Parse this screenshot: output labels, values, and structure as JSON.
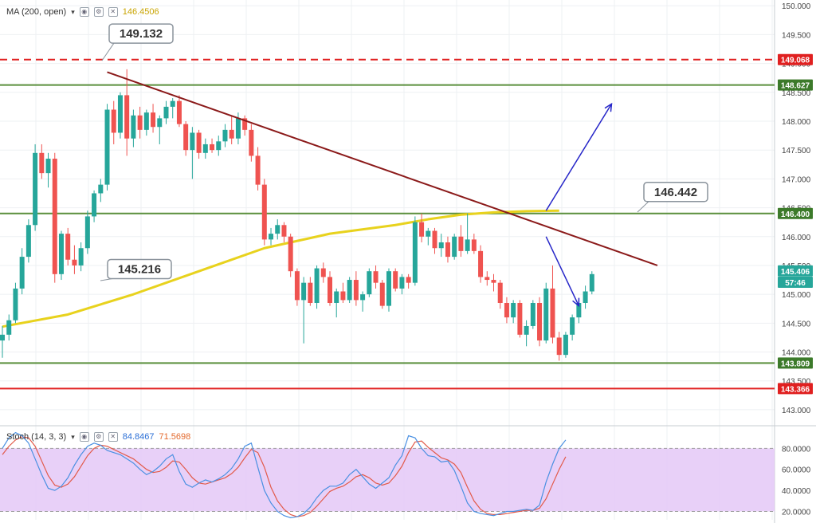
{
  "colors": {
    "bull": "#26a69a",
    "bear": "#ef5350",
    "ma": "#e8d21d",
    "trendline": "#8b1a1a",
    "support": "#5a8f3c",
    "resistance_red": "#e02020",
    "arrow": "#2626c8",
    "stoch_k": "#4a90e2",
    "stoch_d": "#e25a4a",
    "stoch_band": "#e4c8f7",
    "callout_border": "#8a939c",
    "axis_text": "#444444"
  },
  "legend_main": {
    "ma_label": "MA (200, open)",
    "ma_value": "146.4506"
  },
  "legend_stoch": {
    "label": "Stoch (14, 3, 3)",
    "k_value": "84.8467",
    "d_value": "71.5698"
  },
  "callouts": [
    {
      "text": "149.132",
      "price": 149.132
    },
    {
      "text": "146.442",
      "price": 146.442
    },
    {
      "text": "145.216",
      "price": 145.216
    }
  ],
  "price_tags": [
    {
      "text": "149.068",
      "price": 149.068,
      "color": "#e02020"
    },
    {
      "text": "148.627",
      "price": 148.627,
      "color": "#3c7a2a"
    },
    {
      "text": "146.400",
      "price": 146.4,
      "color": "#3c7a2a"
    },
    {
      "text": "145.406",
      "price": 145.406,
      "color": "#26a69a"
    },
    {
      "text": "57:46",
      "price": 145.21,
      "color": "#26a69a"
    },
    {
      "text": "143.809",
      "price": 143.809,
      "color": "#3c7a2a"
    },
    {
      "text": "143.366",
      "price": 143.366,
      "color": "#e02020"
    }
  ],
  "chart_data": {
    "type": "candlestick",
    "title": "",
    "y_axis": {
      "range": [
        142.75,
        150.1
      ],
      "ticks": [
        "143.000",
        "143.500",
        "144.000",
        "144.500",
        "145.000",
        "145.500",
        "146.000",
        "146.500",
        "147.000",
        "147.500",
        "148.000",
        "148.500",
        "149.000",
        "149.500",
        "150.000"
      ],
      "tick_values": [
        143.0,
        143.5,
        144.0,
        144.5,
        145.0,
        145.5,
        146.0,
        146.5,
        147.0,
        147.5,
        148.0,
        148.5,
        149.0,
        149.5,
        150.0
      ]
    },
    "candles": [
      {
        "o": 144.2,
        "h": 144.45,
        "l": 143.9,
        "c": 144.3
      },
      {
        "o": 144.3,
        "h": 144.65,
        "l": 144.2,
        "c": 144.55
      },
      {
        "o": 144.55,
        "h": 145.2,
        "l": 144.5,
        "c": 145.1
      },
      {
        "o": 145.1,
        "h": 145.8,
        "l": 145.0,
        "c": 145.65
      },
      {
        "o": 145.65,
        "h": 146.3,
        "l": 145.55,
        "c": 146.2
      },
      {
        "o": 146.2,
        "h": 147.6,
        "l": 146.1,
        "c": 147.45
      },
      {
        "o": 147.45,
        "h": 147.6,
        "l": 147.0,
        "c": 147.1
      },
      {
        "o": 147.1,
        "h": 147.45,
        "l": 146.85,
        "c": 147.35
      },
      {
        "o": 147.35,
        "h": 147.45,
        "l": 145.2,
        "c": 145.35
      },
      {
        "o": 145.35,
        "h": 146.1,
        "l": 145.25,
        "c": 146.05
      },
      {
        "o": 146.05,
        "h": 146.15,
        "l": 145.5,
        "c": 145.6
      },
      {
        "o": 145.6,
        "h": 145.85,
        "l": 145.35,
        "c": 145.5
      },
      {
        "o": 145.5,
        "h": 145.9,
        "l": 145.4,
        "c": 145.8
      },
      {
        "o": 145.8,
        "h": 146.45,
        "l": 145.7,
        "c": 146.35
      },
      {
        "o": 146.35,
        "h": 146.8,
        "l": 146.25,
        "c": 146.75
      },
      {
        "o": 146.75,
        "h": 147.0,
        "l": 146.6,
        "c": 146.9
      },
      {
        "o": 146.9,
        "h": 148.3,
        "l": 146.8,
        "c": 148.2
      },
      {
        "o": 148.2,
        "h": 148.35,
        "l": 147.6,
        "c": 147.8
      },
      {
        "o": 147.8,
        "h": 148.5,
        "l": 147.7,
        "c": 148.45
      },
      {
        "o": 148.45,
        "h": 148.9,
        "l": 147.4,
        "c": 147.7
      },
      {
        "o": 147.7,
        "h": 148.2,
        "l": 147.55,
        "c": 148.1
      },
      {
        "o": 148.1,
        "h": 148.25,
        "l": 147.7,
        "c": 147.85
      },
      {
        "o": 147.85,
        "h": 148.2,
        "l": 147.75,
        "c": 148.15
      },
      {
        "o": 148.15,
        "h": 148.3,
        "l": 147.8,
        "c": 147.9
      },
      {
        "o": 147.9,
        "h": 148.1,
        "l": 147.6,
        "c": 148.05
      },
      {
        "o": 148.05,
        "h": 148.35,
        "l": 147.95,
        "c": 148.25
      },
      {
        "o": 148.25,
        "h": 148.4,
        "l": 148.05,
        "c": 148.35
      },
      {
        "o": 148.35,
        "h": 148.45,
        "l": 147.9,
        "c": 147.95
      },
      {
        "o": 147.95,
        "h": 148.0,
        "l": 147.4,
        "c": 147.5
      },
      {
        "o": 147.5,
        "h": 147.9,
        "l": 147.0,
        "c": 147.8
      },
      {
        "o": 147.8,
        "h": 147.85,
        "l": 147.35,
        "c": 147.45
      },
      {
        "o": 147.45,
        "h": 147.7,
        "l": 147.35,
        "c": 147.6
      },
      {
        "o": 147.6,
        "h": 147.7,
        "l": 147.45,
        "c": 147.5
      },
      {
        "o": 147.5,
        "h": 147.75,
        "l": 147.4,
        "c": 147.65
      },
      {
        "o": 147.65,
        "h": 147.95,
        "l": 147.55,
        "c": 147.85
      },
      {
        "o": 147.85,
        "h": 148.1,
        "l": 147.6,
        "c": 147.7
      },
      {
        "o": 147.7,
        "h": 148.15,
        "l": 147.6,
        "c": 148.05
      },
      {
        "o": 148.05,
        "h": 148.1,
        "l": 147.75,
        "c": 147.85
      },
      {
        "o": 147.85,
        "h": 147.95,
        "l": 147.3,
        "c": 147.4
      },
      {
        "o": 147.4,
        "h": 147.55,
        "l": 146.8,
        "c": 146.9
      },
      {
        "o": 146.9,
        "h": 147.0,
        "l": 145.85,
        "c": 145.95
      },
      {
        "o": 145.95,
        "h": 146.15,
        "l": 145.85,
        "c": 146.05
      },
      {
        "o": 146.05,
        "h": 146.3,
        "l": 145.95,
        "c": 146.2
      },
      {
        "o": 146.2,
        "h": 146.25,
        "l": 145.9,
        "c": 146.0
      },
      {
        "o": 146.0,
        "h": 146.05,
        "l": 145.3,
        "c": 145.4
      },
      {
        "o": 145.4,
        "h": 145.45,
        "l": 144.8,
        "c": 144.9
      },
      {
        "o": 144.9,
        "h": 145.3,
        "l": 144.15,
        "c": 145.2
      },
      {
        "o": 145.2,
        "h": 145.3,
        "l": 144.8,
        "c": 144.85
      },
      {
        "o": 144.85,
        "h": 145.5,
        "l": 144.75,
        "c": 145.45
      },
      {
        "o": 145.45,
        "h": 145.55,
        "l": 145.2,
        "c": 145.3
      },
      {
        "o": 145.3,
        "h": 145.4,
        "l": 144.8,
        "c": 144.85
      },
      {
        "o": 144.85,
        "h": 145.1,
        "l": 144.6,
        "c": 145.05
      },
      {
        "o": 145.05,
        "h": 145.2,
        "l": 144.85,
        "c": 144.9
      },
      {
        "o": 144.9,
        "h": 145.3,
        "l": 144.85,
        "c": 145.25
      },
      {
        "o": 145.25,
        "h": 145.4,
        "l": 144.8,
        "c": 144.9
      },
      {
        "o": 144.9,
        "h": 145.05,
        "l": 144.7,
        "c": 145.0
      },
      {
        "o": 145.0,
        "h": 145.45,
        "l": 144.95,
        "c": 145.4
      },
      {
        "o": 145.4,
        "h": 145.5,
        "l": 145.1,
        "c": 145.2
      },
      {
        "o": 145.2,
        "h": 145.25,
        "l": 144.75,
        "c": 144.8
      },
      {
        "o": 144.8,
        "h": 145.45,
        "l": 144.7,
        "c": 145.4
      },
      {
        "o": 145.4,
        "h": 145.45,
        "l": 145.05,
        "c": 145.1
      },
      {
        "o": 145.1,
        "h": 145.35,
        "l": 145.0,
        "c": 145.3
      },
      {
        "o": 145.3,
        "h": 145.35,
        "l": 145.1,
        "c": 145.2
      },
      {
        "o": 145.2,
        "h": 146.35,
        "l": 145.15,
        "c": 146.25
      },
      {
        "o": 146.25,
        "h": 146.4,
        "l": 145.9,
        "c": 146.0
      },
      {
        "o": 146.0,
        "h": 146.15,
        "l": 145.85,
        "c": 146.1
      },
      {
        "o": 146.1,
        "h": 146.15,
        "l": 145.7,
        "c": 145.8
      },
      {
        "o": 145.8,
        "h": 146.05,
        "l": 145.65,
        "c": 145.9
      },
      {
        "o": 145.9,
        "h": 146.0,
        "l": 145.55,
        "c": 145.65
      },
      {
        "o": 145.65,
        "h": 146.05,
        "l": 145.6,
        "c": 146.0
      },
      {
        "o": 146.0,
        "h": 146.2,
        "l": 145.65,
        "c": 145.75
      },
      {
        "o": 145.75,
        "h": 146.4,
        "l": 145.7,
        "c": 145.95
      },
      {
        "o": 145.95,
        "h": 146.05,
        "l": 145.7,
        "c": 145.75
      },
      {
        "o": 145.75,
        "h": 145.85,
        "l": 145.2,
        "c": 145.3
      },
      {
        "o": 145.3,
        "h": 145.4,
        "l": 145.15,
        "c": 145.25
      },
      {
        "o": 145.25,
        "h": 145.35,
        "l": 145.05,
        "c": 145.2
      },
      {
        "o": 145.2,
        "h": 145.25,
        "l": 144.75,
        "c": 144.85
      },
      {
        "o": 144.85,
        "h": 144.95,
        "l": 144.5,
        "c": 144.6
      },
      {
        "o": 144.6,
        "h": 144.9,
        "l": 144.5,
        "c": 144.85
      },
      {
        "o": 144.85,
        "h": 144.9,
        "l": 144.25,
        "c": 144.3
      },
      {
        "o": 144.3,
        "h": 144.55,
        "l": 144.1,
        "c": 144.45
      },
      {
        "o": 144.45,
        "h": 144.9,
        "l": 144.4,
        "c": 144.85
      },
      {
        "o": 144.85,
        "h": 144.95,
        "l": 144.1,
        "c": 144.2
      },
      {
        "o": 144.2,
        "h": 145.2,
        "l": 144.15,
        "c": 145.1
      },
      {
        "o": 145.1,
        "h": 145.5,
        "l": 144.15,
        "c": 144.25
      },
      {
        "o": 144.25,
        "h": 144.35,
        "l": 143.85,
        "c": 143.95
      },
      {
        "o": 143.95,
        "h": 144.35,
        "l": 143.9,
        "c": 144.3
      },
      {
        "o": 144.3,
        "h": 144.65,
        "l": 144.2,
        "c": 144.6
      },
      {
        "o": 144.6,
        "h": 144.9,
        "l": 144.5,
        "c": 144.85
      },
      {
        "o": 144.85,
        "h": 145.15,
        "l": 144.75,
        "c": 145.05
      },
      {
        "o": 145.05,
        "h": 145.4,
        "l": 145.0,
        "c": 145.35
      }
    ],
    "moving_average": {
      "name": "MA (200, open)",
      "points": [
        [
          0,
          144.44
        ],
        [
          10,
          144.65
        ],
        [
          20,
          145.0
        ],
        [
          30,
          145.4
        ],
        [
          40,
          145.8
        ],
        [
          50,
          146.05
        ],
        [
          60,
          146.2
        ],
        [
          65,
          146.3
        ],
        [
          70,
          146.38
        ],
        [
          75,
          146.42
        ],
        [
          80,
          146.44
        ],
        [
          85,
          146.45
        ]
      ]
    },
    "levels": [
      {
        "price": 149.068,
        "style": "dashed",
        "color": "#e02020"
      },
      {
        "price": 148.627,
        "style": "solid",
        "color": "#5a8f3c"
      },
      {
        "price": 146.4,
        "style": "solid",
        "color": "#5a8f3c"
      },
      {
        "price": 143.809,
        "style": "solid",
        "color": "#5a8f3c"
      },
      {
        "price": 143.366,
        "style": "solid",
        "color": "#e02020"
      }
    ],
    "trendline": {
      "from": [
        16,
        148.85
      ],
      "to": [
        100,
        145.5
      ]
    },
    "arrows": [
      {
        "from": [
          83,
          146.45
        ],
        "to": [
          93,
          148.3
        ]
      },
      {
        "from": [
          83,
          146.0
        ],
        "to": [
          88,
          144.8
        ]
      }
    ],
    "stochastic": {
      "y_ticks": [
        "20.0000",
        "40.0000",
        "60.0000",
        "80.0000"
      ],
      "y_tick_values": [
        20,
        40,
        60,
        80
      ],
      "band": [
        20,
        80
      ],
      "range": [
        12,
        100
      ],
      "k": [
        80,
        90,
        95,
        92,
        85,
        70,
        55,
        42,
        40,
        44,
        52,
        64,
        74,
        82,
        85,
        83,
        78,
        76,
        74,
        70,
        66,
        60,
        55,
        58,
        63,
        70,
        74,
        58,
        46,
        43,
        47,
        50,
        48,
        51,
        55,
        61,
        70,
        82,
        85,
        62,
        40,
        28,
        20,
        16,
        14,
        15,
        18,
        24,
        33,
        40,
        44,
        44,
        47,
        55,
        60,
        53,
        46,
        42,
        47,
        52,
        64,
        73,
        92,
        90,
        80,
        73,
        72,
        67,
        68,
        59,
        44,
        28,
        20,
        18,
        17,
        16,
        18,
        20,
        20,
        21,
        22,
        21,
        26,
        48,
        65,
        80,
        88
      ],
      "d": [
        74,
        82,
        88,
        91,
        90,
        82,
        68,
        54,
        45,
        43,
        46,
        53,
        63,
        73,
        80,
        83,
        82,
        79,
        76,
        73,
        70,
        65,
        60,
        57,
        58,
        62,
        68,
        67,
        60,
        52,
        47,
        46,
        48,
        50,
        52,
        56,
        62,
        71,
        79,
        76,
        62,
        43,
        30,
        22,
        17,
        15,
        16,
        19,
        25,
        32,
        39,
        42,
        44,
        48,
        53,
        55,
        52,
        47,
        45,
        47,
        54,
        63,
        76,
        86,
        87,
        81,
        76,
        71,
        69,
        65,
        57,
        43,
        30,
        22,
        18,
        17,
        17,
        18,
        19,
        20,
        21,
        21,
        23,
        32,
        46,
        60,
        72
      ]
    }
  }
}
